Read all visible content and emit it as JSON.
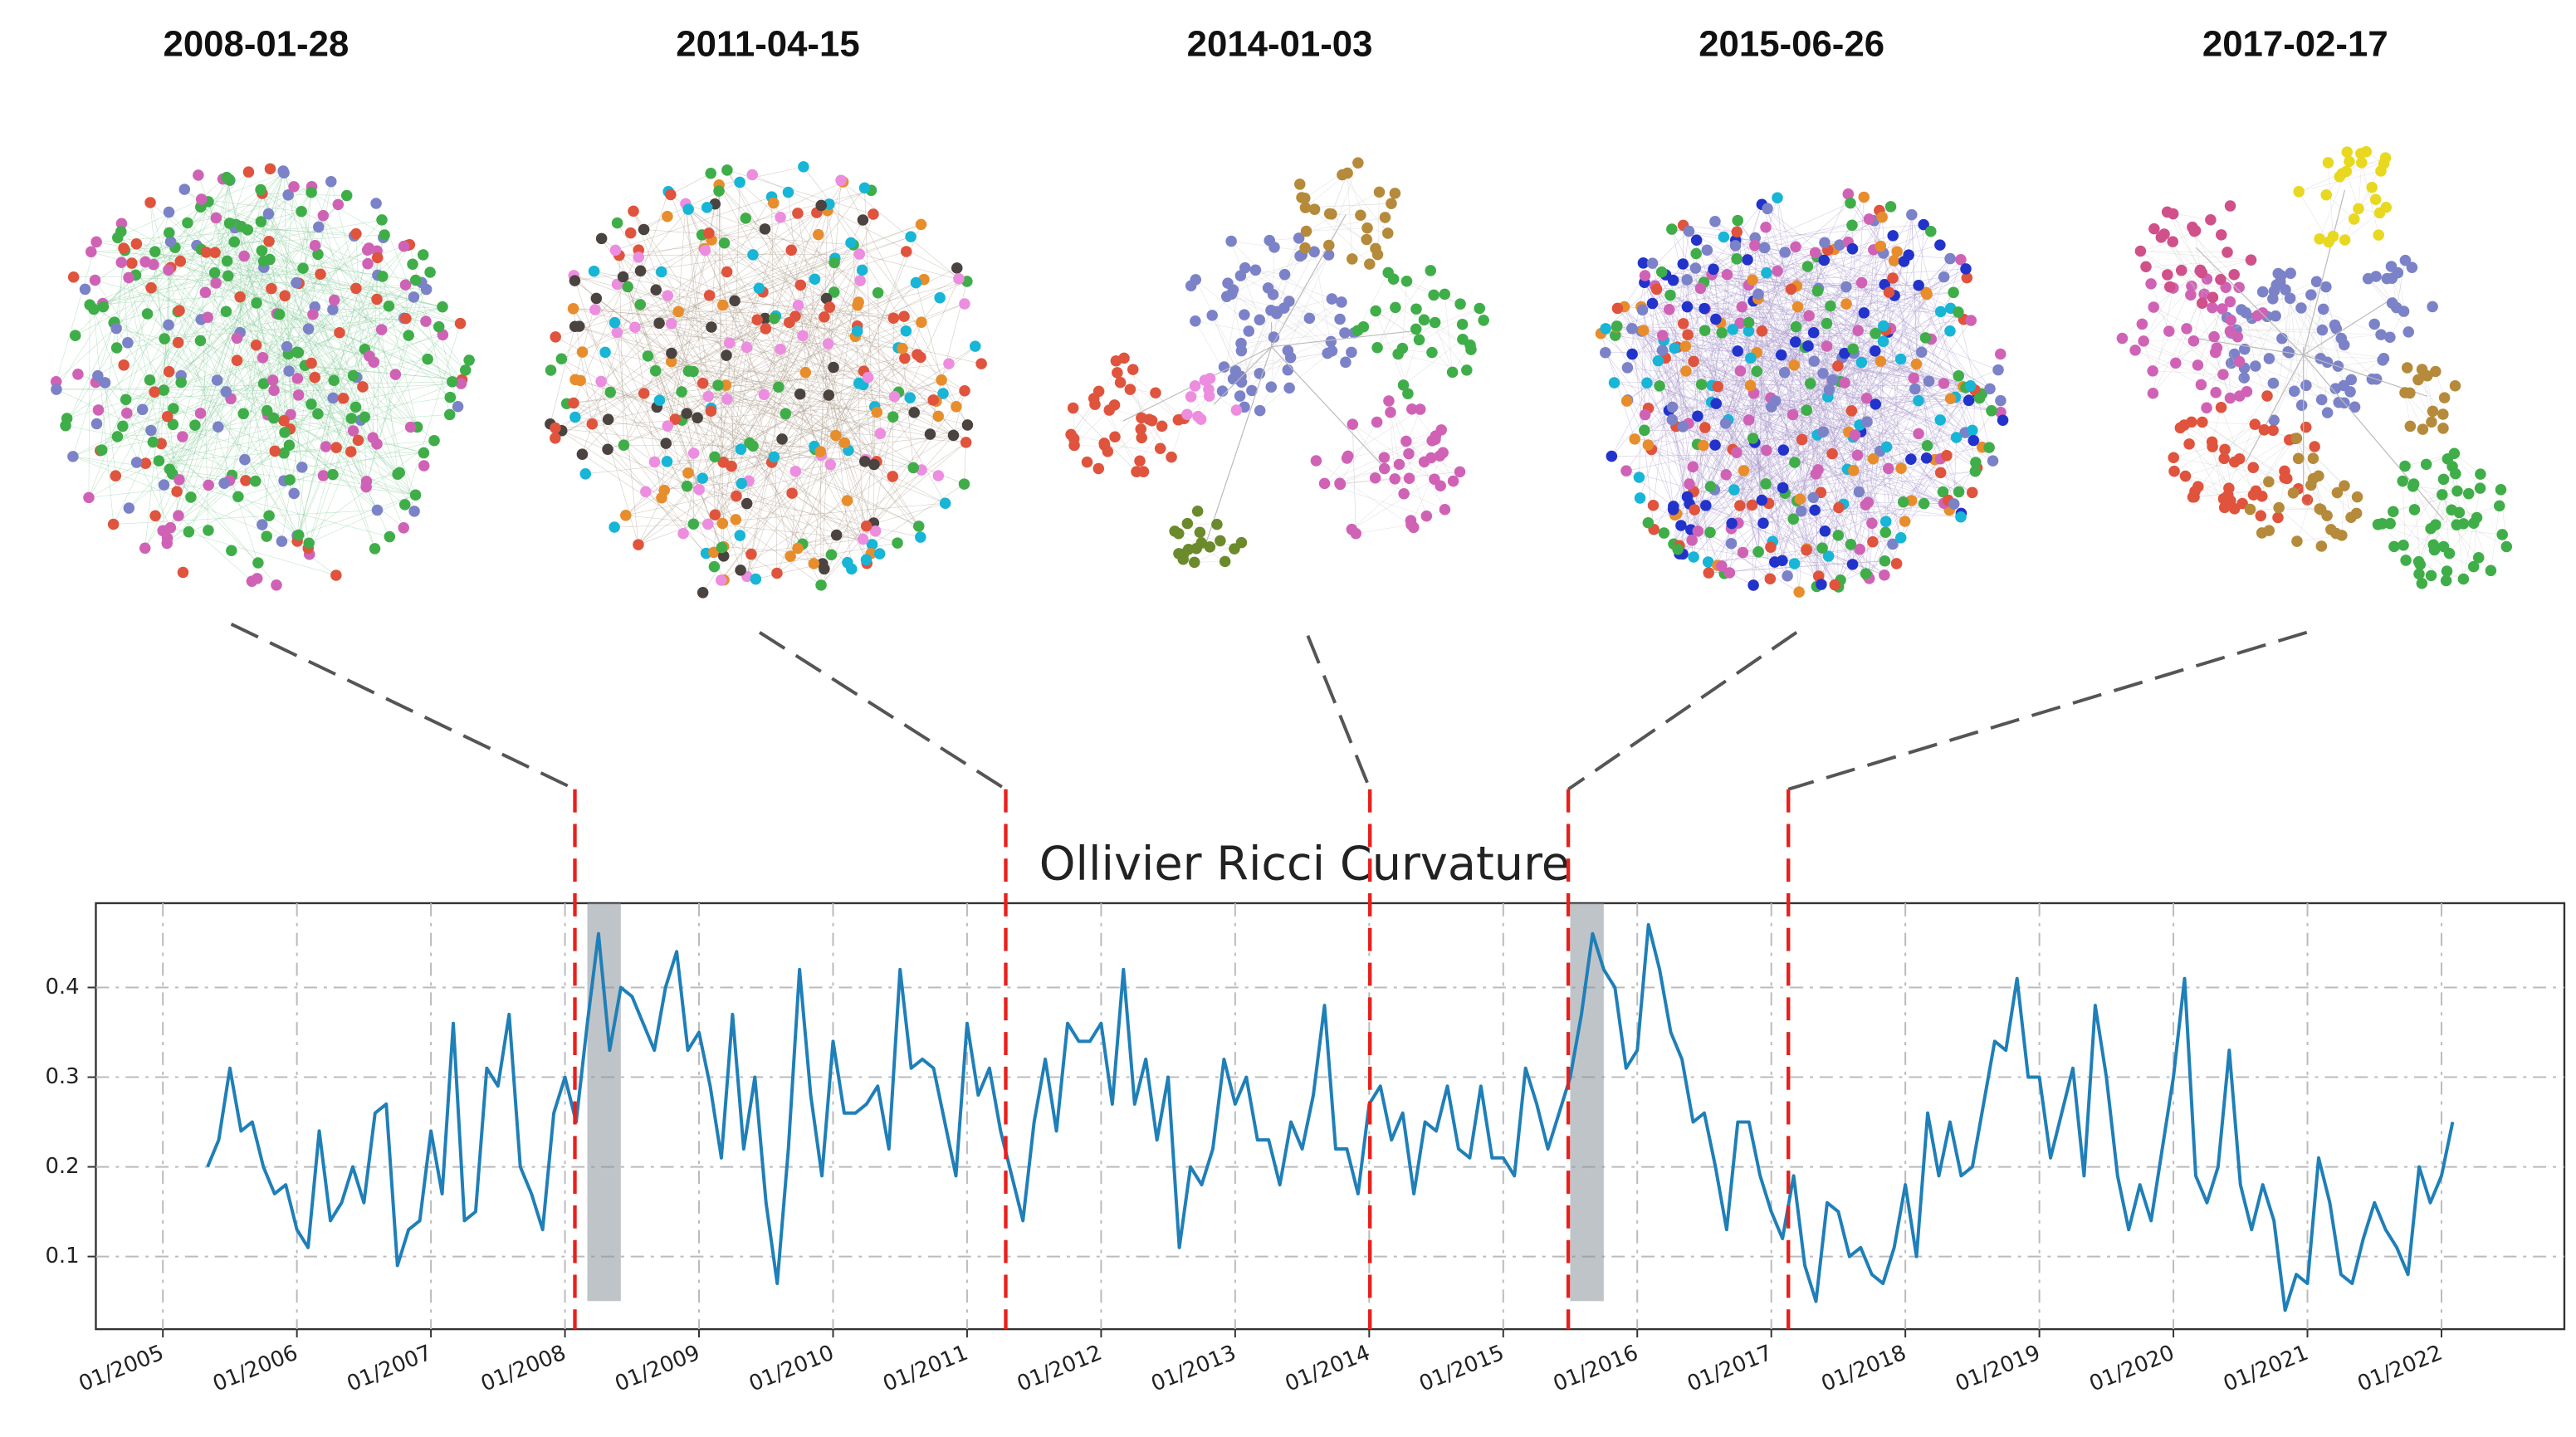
{
  "chart_data": {
    "type": "line",
    "title": "Ollivier Ricci Curvature",
    "snapshots": [
      {
        "date": "2008-01-28"
      },
      {
        "date": "2011-04-15"
      },
      {
        "date": "2014-01-03"
      },
      {
        "date": "2015-06-26"
      },
      {
        "date": "2017-02-17"
      }
    ],
    "highlights": [
      {
        "start": "2008-03",
        "end": "2008-06"
      },
      {
        "start": "2015-07",
        "end": "2015-10"
      }
    ],
    "xlim": [
      "2004-07",
      "2022-12"
    ],
    "ylim": [
      0.019,
      0.494
    ],
    "yticks": [
      0.1,
      0.2,
      0.3,
      0.4
    ],
    "xticks": [
      {
        "value": "2005-01",
        "label": "01/2005"
      },
      {
        "value": "2006-01",
        "label": "01/2006"
      },
      {
        "value": "2007-01",
        "label": "01/2007"
      },
      {
        "value": "2008-01",
        "label": "01/2008"
      },
      {
        "value": "2009-01",
        "label": "01/2009"
      },
      {
        "value": "2010-01",
        "label": "01/2010"
      },
      {
        "value": "2011-01",
        "label": "01/2011"
      },
      {
        "value": "2012-01",
        "label": "01/2012"
      },
      {
        "value": "2013-01",
        "label": "01/2013"
      },
      {
        "value": "2014-01",
        "label": "01/2014"
      },
      {
        "value": "2015-01",
        "label": "01/2015"
      },
      {
        "value": "2016-01",
        "label": "01/2016"
      },
      {
        "value": "2017-01",
        "label": "01/2017"
      },
      {
        "value": "2018-01",
        "label": "01/2018"
      },
      {
        "value": "2019-01",
        "label": "01/2019"
      },
      {
        "value": "2020-01",
        "label": "01/2020"
      },
      {
        "value": "2021-01",
        "label": "01/2021"
      },
      {
        "value": "2022-01",
        "label": "01/2022"
      }
    ],
    "grid": true,
    "x": [
      "2005-05",
      "2005-06",
      "2005-07",
      "2005-08",
      "2005-09",
      "2005-10",
      "2005-11",
      "2005-12",
      "2006-01",
      "2006-02",
      "2006-03",
      "2006-04",
      "2006-05",
      "2006-06",
      "2006-07",
      "2006-08",
      "2006-09",
      "2006-10",
      "2006-11",
      "2006-12",
      "2007-01",
      "2007-02",
      "2007-03",
      "2007-04",
      "2007-05",
      "2007-06",
      "2007-07",
      "2007-08",
      "2007-09",
      "2007-10",
      "2007-11",
      "2007-12",
      "2008-01",
      "2008-02",
      "2008-03",
      "2008-04",
      "2008-05",
      "2008-06",
      "2008-07",
      "2008-08",
      "2008-09",
      "2008-10",
      "2008-11",
      "2008-12",
      "2009-01",
      "2009-02",
      "2009-03",
      "2009-04",
      "2009-05",
      "2009-06",
      "2009-07",
      "2009-08",
      "2009-09",
      "2009-10",
      "2009-11",
      "2009-12",
      "2010-01",
      "2010-02",
      "2010-03",
      "2010-04",
      "2010-05",
      "2010-06",
      "2010-07",
      "2010-08",
      "2010-09",
      "2010-10",
      "2010-11",
      "2010-12",
      "2011-01",
      "2011-02",
      "2011-03",
      "2011-04",
      "2011-05",
      "2011-06",
      "2011-07",
      "2011-08",
      "2011-09",
      "2011-10",
      "2011-11",
      "2011-12",
      "2012-01",
      "2012-02",
      "2012-03",
      "2012-04",
      "2012-05",
      "2012-06",
      "2012-07",
      "2012-08",
      "2012-09",
      "2012-10",
      "2012-11",
      "2012-12",
      "2013-01",
      "2013-02",
      "2013-03",
      "2013-04",
      "2013-05",
      "2013-06",
      "2013-07",
      "2013-08",
      "2013-09",
      "2013-10",
      "2013-11",
      "2013-12",
      "2014-01",
      "2014-02",
      "2014-03",
      "2014-04",
      "2014-05",
      "2014-06",
      "2014-07",
      "2014-08",
      "2014-09",
      "2014-10",
      "2014-11",
      "2014-12",
      "2015-01",
      "2015-02",
      "2015-03",
      "2015-04",
      "2015-05",
      "2015-06",
      "2015-07",
      "2015-08",
      "2015-09",
      "2015-10",
      "2015-11",
      "2015-12",
      "2016-01",
      "2016-02",
      "2016-03",
      "2016-04",
      "2016-05",
      "2016-06",
      "2016-07",
      "2016-08",
      "2016-09",
      "2016-10",
      "2016-11",
      "2016-12",
      "2017-01",
      "2017-02",
      "2017-03",
      "2017-04",
      "2017-05",
      "2017-06",
      "2017-07",
      "2017-08",
      "2017-09",
      "2017-10",
      "2017-11",
      "2017-12",
      "2018-01",
      "2018-02",
      "2018-03",
      "2018-04",
      "2018-05",
      "2018-06",
      "2018-07",
      "2018-08",
      "2018-09",
      "2018-10",
      "2018-11",
      "2018-12",
      "2019-01",
      "2019-02",
      "2019-03",
      "2019-04",
      "2019-05",
      "2019-06",
      "2019-07",
      "2019-08",
      "2019-09",
      "2019-10",
      "2019-11",
      "2019-12",
      "2020-01",
      "2020-02",
      "2020-03",
      "2020-04",
      "2020-05",
      "2020-06",
      "2020-07",
      "2020-08",
      "2020-09",
      "2020-10",
      "2020-11",
      "2020-12",
      "2021-01",
      "2021-02",
      "2021-03",
      "2021-04",
      "2021-05",
      "2021-06",
      "2021-07",
      "2021-08",
      "2021-09",
      "2021-10",
      "2021-11",
      "2021-12",
      "2022-01",
      "2022-02"
    ],
    "series": [
      {
        "color": "#1f7fb8",
        "values": [
          0.2,
          0.23,
          0.31,
          0.24,
          0.25,
          0.2,
          0.17,
          0.18,
          0.13,
          0.11,
          0.24,
          0.14,
          0.16,
          0.2,
          0.16,
          0.26,
          0.27,
          0.09,
          0.13,
          0.14,
          0.24,
          0.17,
          0.36,
          0.14,
          0.15,
          0.31,
          0.29,
          0.37,
          0.2,
          0.17,
          0.13,
          0.26,
          0.3,
          0.25,
          0.36,
          0.46,
          0.33,
          0.4,
          0.39,
          0.36,
          0.33,
          0.4,
          0.44,
          0.33,
          0.35,
          0.29,
          0.21,
          0.37,
          0.22,
          0.3,
          0.16,
          0.07,
          0.22,
          0.42,
          0.28,
          0.19,
          0.34,
          0.26,
          0.26,
          0.27,
          0.29,
          0.22,
          0.42,
          0.31,
          0.32,
          0.31,
          0.25,
          0.19,
          0.36,
          0.28,
          0.31,
          0.24,
          0.19,
          0.14,
          0.25,
          0.32,
          0.24,
          0.36,
          0.34,
          0.34,
          0.36,
          0.27,
          0.42,
          0.27,
          0.32,
          0.23,
          0.3,
          0.11,
          0.2,
          0.18,
          0.22,
          0.32,
          0.27,
          0.3,
          0.23,
          0.23,
          0.18,
          0.25,
          0.22,
          0.28,
          0.38,
          0.22,
          0.22,
          0.17,
          0.27,
          0.29,
          0.23,
          0.26,
          0.17,
          0.25,
          0.24,
          0.29,
          0.22,
          0.21,
          0.29,
          0.21,
          0.21,
          0.19,
          0.31,
          0.27,
          0.22,
          0.26,
          0.3,
          0.37,
          0.46,
          0.42,
          0.4,
          0.31,
          0.33,
          0.47,
          0.42,
          0.35,
          0.32,
          0.25,
          0.26,
          0.2,
          0.13,
          0.25,
          0.25,
          0.19,
          0.15,
          0.12,
          0.19,
          0.09,
          0.05,
          0.16,
          0.15,
          0.1,
          0.11,
          0.08,
          0.07,
          0.11,
          0.18,
          0.1,
          0.26,
          0.19,
          0.25,
          0.19,
          0.2,
          0.27,
          0.34,
          0.33,
          0.41,
          0.3,
          0.3,
          0.21,
          0.26,
          0.31,
          0.19,
          0.38,
          0.3,
          0.19,
          0.13,
          0.18,
          0.14,
          0.22,
          0.3,
          0.41,
          0.19,
          0.16,
          0.2,
          0.33,
          0.18,
          0.13,
          0.18,
          0.14,
          0.04,
          0.08,
          0.07,
          0.21,
          0.16,
          0.08,
          0.07,
          0.12,
          0.16,
          0.13,
          0.11,
          0.08,
          0.2,
          0.16,
          0.19,
          0.25
        ]
      }
    ]
  }
}
